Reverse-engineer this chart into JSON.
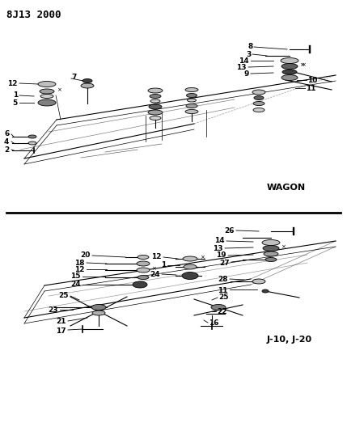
{
  "title": "8J13 2000",
  "bg": "#f5f5f0",
  "wagon_label": "WAGON",
  "j_label": "J-10, J-20",
  "fig_w": 4.29,
  "fig_h": 5.33,
  "dpi": 100
}
